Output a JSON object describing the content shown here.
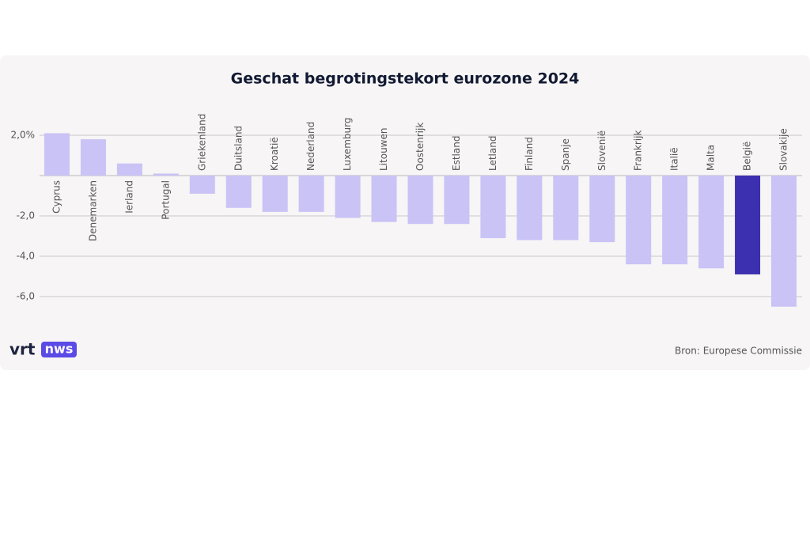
{
  "chart_data": {
    "type": "bar",
    "title": "Geschat begrotingstekort eurozone 2024",
    "categories": [
      "Cyprus",
      "Denemarken",
      "Ierland",
      "Portugal",
      "Griekenland",
      "Duitsland",
      "Kroatië",
      "Nederland",
      "Luxemburg",
      "Litouwen",
      "Oostenrijk",
      "Estland",
      "Letland",
      "Finland",
      "Spanje",
      "Slovenië",
      "Frankrijk",
      "Italië",
      "Malta",
      "België",
      "Slovakije"
    ],
    "values": [
      2.1,
      1.8,
      0.6,
      0.1,
      -0.9,
      -1.6,
      -1.8,
      -1.8,
      -2.1,
      -2.3,
      -2.4,
      -2.4,
      -3.1,
      -3.2,
      -3.2,
      -3.3,
      -4.4,
      -4.4,
      -4.6,
      -4.9,
      -6.5
    ],
    "colors": [
      "#c9c3f6",
      "#c9c3f6",
      "#c9c3f6",
      "#c9c3f6",
      "#c9c3f6",
      "#c9c3f6",
      "#c9c3f6",
      "#c9c3f6",
      "#c9c3f6",
      "#c9c3f6",
      "#c9c3f6",
      "#c9c3f6",
      "#c9c3f6",
      "#c9c3f6",
      "#c9c3f6",
      "#c9c3f6",
      "#c9c3f6",
      "#c9c3f6",
      "#c9c3f6",
      "#3d30b0",
      "#c9c3f6"
    ],
    "ylim": [
      -6.6,
      2.2
    ],
    "yticks": [
      {
        "value": 2,
        "label": "2,0%"
      },
      {
        "value": -2,
        "label": "-2,0"
      },
      {
        "value": -4,
        "label": "-4,0"
      },
      {
        "value": -6,
        "label": "-6,0"
      }
    ],
    "grid": true,
    "source": "Bron: Europese Commissie",
    "logo": {
      "brand": "vrt",
      "badge": "nws"
    }
  }
}
